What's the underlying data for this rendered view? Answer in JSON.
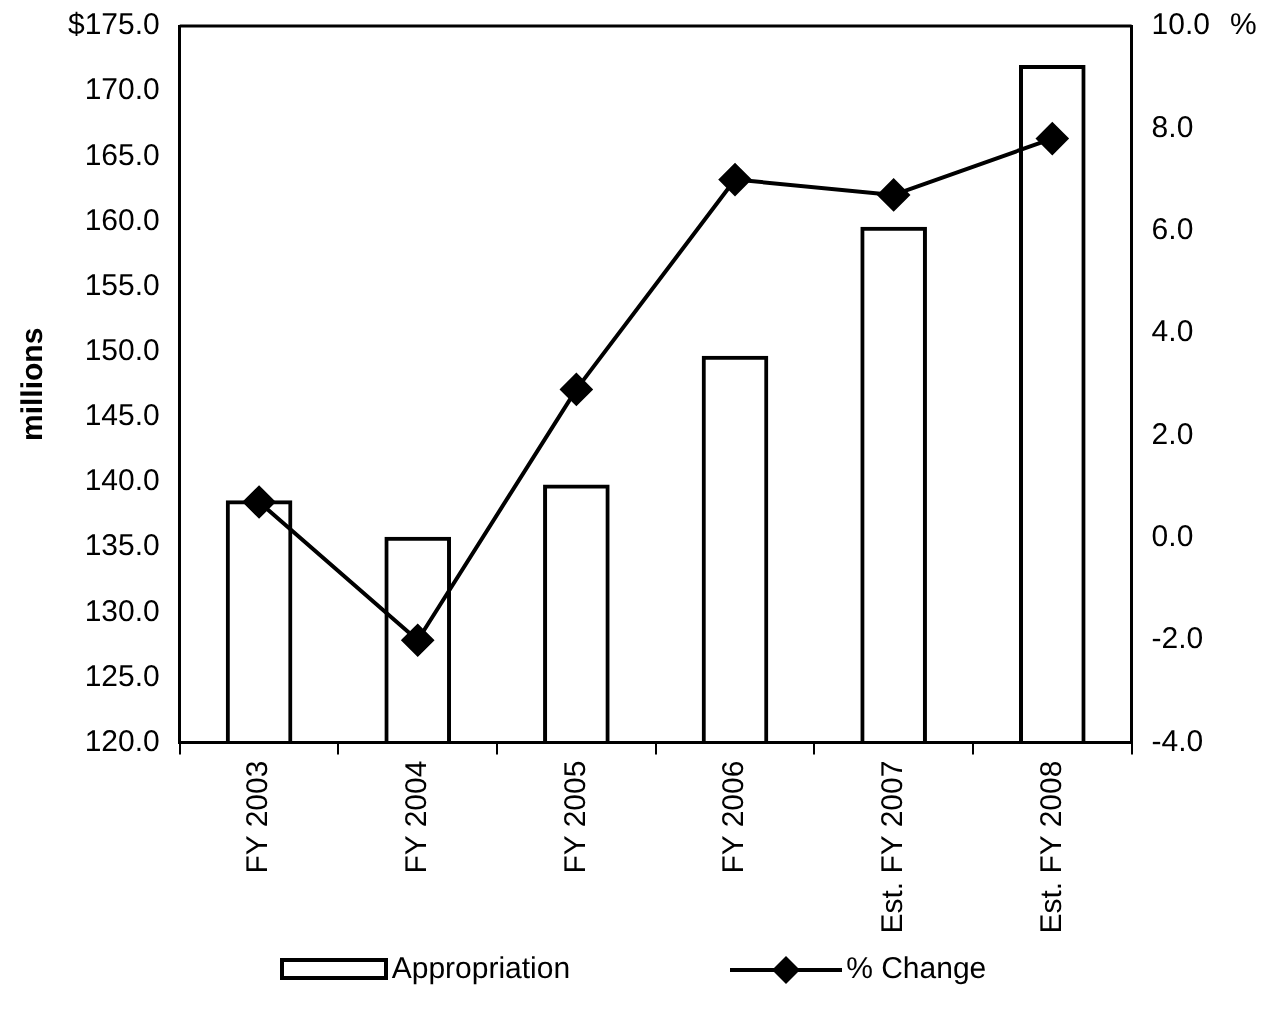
{
  "chart_data": {
    "type": "bar",
    "ylabel": "millions",
    "y2label": "%",
    "categories": [
      "FY 2003",
      "FY 2004",
      "FY 2005",
      "FY 2006",
      "Est. FY 2007",
      "Est. FY 2008"
    ],
    "series": [
      {
        "name": "Appropriation",
        "color": "#000000",
        "values": [
          138.6,
          135.8,
          139.8,
          149.7,
          159.6,
          172.0
        ]
      },
      {
        "name": "% Change",
        "type": "line",
        "axis": "y2",
        "color": "#000000",
        "marker": "diamond",
        "values": [
          0.7,
          -2.0,
          2.9,
          7.0,
          6.7,
          7.8
        ]
      }
    ],
    "ylim": [
      120,
      175
    ],
    "yticks": [
      {
        "value": 120,
        "label": "120.0"
      },
      {
        "value": 125,
        "label": "125.0"
      },
      {
        "value": 130,
        "label": "130.0"
      },
      {
        "value": 135,
        "label": "135.0"
      },
      {
        "value": 140,
        "label": "140.0"
      },
      {
        "value": 145,
        "label": "145.0"
      },
      {
        "value": 150,
        "label": "150.0"
      },
      {
        "value": 155,
        "label": "155.0"
      },
      {
        "value": 160,
        "label": "160.0"
      },
      {
        "value": 165,
        "label": "165.0"
      },
      {
        "value": 170,
        "label": "170.0"
      },
      {
        "value": 175,
        "label": "$175.0"
      }
    ],
    "y2lim": [
      -4,
      10
    ],
    "y2ticks": [
      {
        "value": -4,
        "label": "-4.0"
      },
      {
        "value": -2,
        "label": "-2.0"
      },
      {
        "value": 0,
        "label": "0.0"
      },
      {
        "value": 2,
        "label": "2.0"
      },
      {
        "value": 4,
        "label": "4.0"
      },
      {
        "value": 6,
        "label": "6.0"
      },
      {
        "value": 8,
        "label": "8.0"
      },
      {
        "value": 10,
        "label": "10.0"
      }
    ],
    "grid": false,
    "legend": "bottom"
  }
}
